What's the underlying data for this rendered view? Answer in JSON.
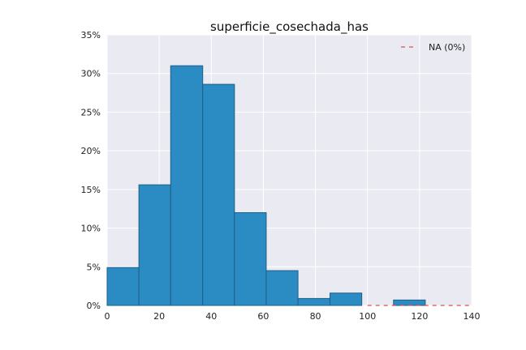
{
  "chart_data": {
    "type": "bar",
    "title": "superficie_cosechada_has",
    "xlabel": "",
    "ylabel": "",
    "xlim": [
      0,
      140
    ],
    "ylim": [
      0,
      35
    ],
    "grid": true,
    "legend": {
      "placement": "top-right",
      "entries": [
        "NA (0%)"
      ]
    },
    "x_ticks": [
      "0",
      "20",
      "40",
      "60",
      "80",
      "100",
      "120",
      "140"
    ],
    "y_ticks": [
      "0%",
      "5%",
      "10%",
      "15%",
      "20%",
      "25%",
      "30%",
      "35%"
    ],
    "bins": [
      {
        "x0": 0,
        "x1": 12.2,
        "value": 4.9
      },
      {
        "x0": 12.2,
        "x1": 24.4,
        "value": 15.6
      },
      {
        "x0": 24.4,
        "x1": 36.7,
        "value": 31.0
      },
      {
        "x0": 36.7,
        "x1": 48.9,
        "value": 28.6
      },
      {
        "x0": 48.9,
        "x1": 61.1,
        "value": 12.0
      },
      {
        "x0": 61.1,
        "x1": 73.3,
        "value": 4.5
      },
      {
        "x0": 73.3,
        "x1": 85.6,
        "value": 0.9
      },
      {
        "x0": 85.6,
        "x1": 97.8,
        "value": 1.6
      },
      {
        "x0": 97.8,
        "x1": 110.0,
        "value": 0
      },
      {
        "x0": 110.0,
        "x1": 122.2,
        "value": 0.7
      }
    ],
    "na_line": {
      "label": "NA (0%)",
      "value": 0,
      "x_from": 100,
      "x_to": 140
    },
    "colors": {
      "bar": "#2b8cc4",
      "bar_edge": "#1f5f86",
      "plot_bg": "#eaeaf2",
      "grid": "#ffffff",
      "na_line": "#d9534f"
    }
  }
}
